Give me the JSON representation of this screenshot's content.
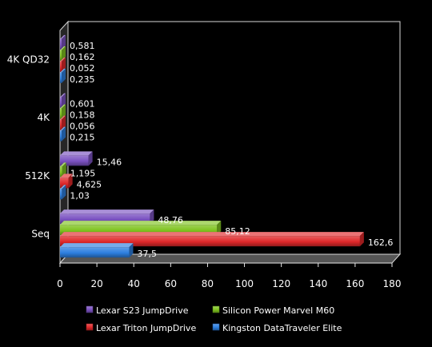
{
  "chart_data": {
    "type": "bar",
    "orientation": "horizontal",
    "three_d": true,
    "categories": [
      "4K QD32",
      "4K",
      "512K",
      "Seq"
    ],
    "xlim": [
      0,
      180
    ],
    "xticks": [
      "0",
      "20",
      "40",
      "60",
      "80",
      "100",
      "120",
      "140",
      "160",
      "180"
    ],
    "grid": false,
    "legend_position": "bottom",
    "series": [
      {
        "name": "Lexar S23 JumpDrive",
        "color": "#7b52c1",
        "values": [
          0.581,
          0.601,
          15.46,
          48.76
        ],
        "labels": [
          "0,581",
          "0,601",
          "15,46",
          "48,76"
        ]
      },
      {
        "name": "Silicon Power Marvel M60",
        "color": "#7fc31f",
        "values": [
          0.162,
          0.158,
          1.195,
          85.12
        ],
        "labels": [
          "0,162",
          "0,158",
          "1,195",
          "85,12"
        ]
      },
      {
        "name": "Lexar Triton JumpDrive",
        "color": "#e0282a",
        "values": [
          0.052,
          0.056,
          4.625,
          162.6
        ],
        "labels": [
          "0,052",
          "0,056",
          "4,625",
          "162,6"
        ]
      },
      {
        "name": "Kingston DataTraveler  Elite",
        "color": "#2d7fe0",
        "values": [
          0.235,
          0.215,
          1.03,
          37.5
        ],
        "labels": [
          "0,235",
          "0,215",
          "1,03",
          "37,5"
        ]
      }
    ],
    "legend": [
      {
        "series": 0,
        "label": "Lexar S23 JumpDrive"
      },
      {
        "series": 1,
        "label": "Silicon Power Marvel M60"
      },
      {
        "series": 2,
        "label": "Lexar Triton JumpDrive"
      },
      {
        "series": 3,
        "label": "Kingston DataTraveler  Elite"
      }
    ]
  }
}
